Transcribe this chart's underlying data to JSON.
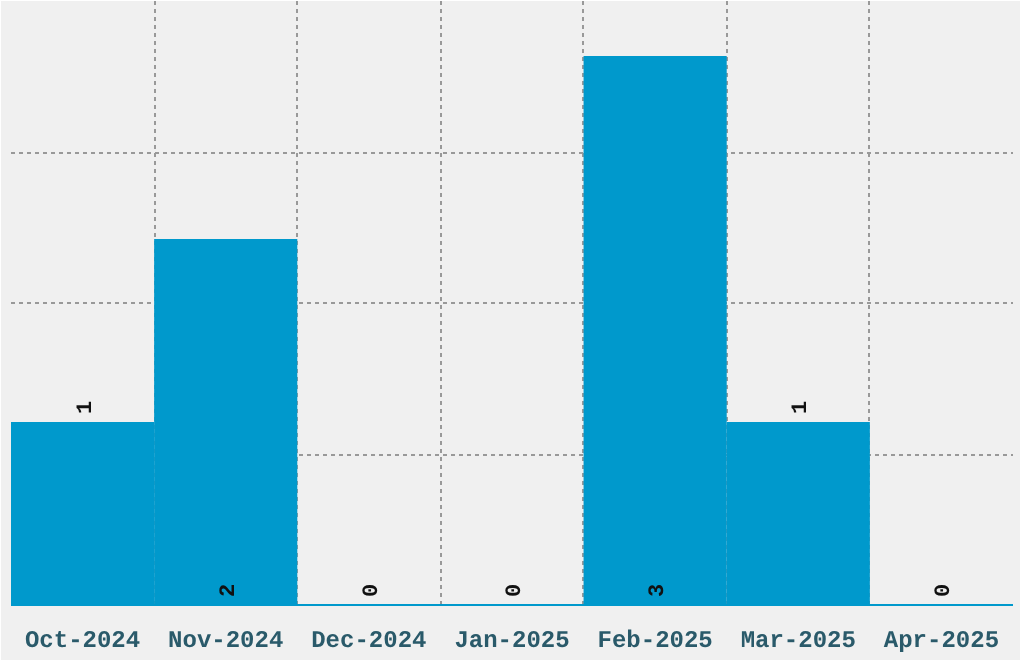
{
  "chart_data": {
    "type": "bar",
    "categories": [
      "Oct-2024",
      "Nov-2024",
      "Dec-2024",
      "Jan-2025",
      "Feb-2025",
      "Mar-2025",
      "Apr-2025"
    ],
    "values": [
      1,
      2,
      0,
      0,
      3,
      1,
      0
    ],
    "color": "#0099cc",
    "data_labels": true,
    "grid": true,
    "ylim": [
      0,
      3.3
    ],
    "yticks": [
      {
        "value": 0.825,
        "label": null
      },
      {
        "value": 1.65,
        "label": null
      },
      {
        "value": 2.475,
        "label": null
      }
    ],
    "tick_labels": "x"
  }
}
